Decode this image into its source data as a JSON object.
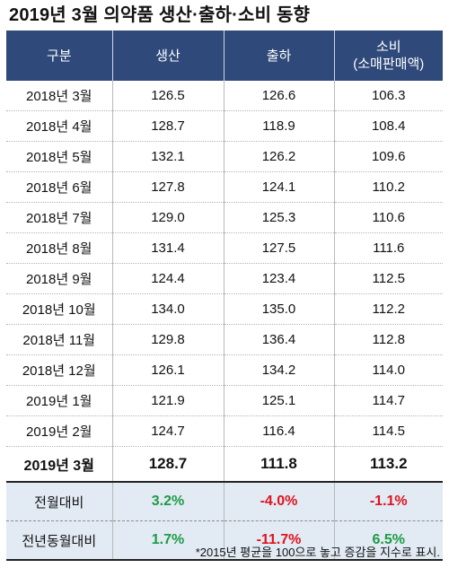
{
  "title": "2019년 3월 의약품 생산·출하·소비 동향",
  "table": {
    "headers": {
      "category": "구분",
      "production": "생산",
      "shipment": "출하",
      "consumption_line1": "소비",
      "consumption_line2": "(소매판매액)"
    },
    "rows": [
      {
        "period": "2018년 3월",
        "production": "126.5",
        "shipment": "126.6",
        "consumption": "106.3"
      },
      {
        "period": "2018년 4월",
        "production": "128.7",
        "shipment": "118.9",
        "consumption": "108.4"
      },
      {
        "period": "2018년 5월",
        "production": "132.1",
        "shipment": "126.2",
        "consumption": "109.6"
      },
      {
        "period": "2018년 6월",
        "production": "127.8",
        "shipment": "124.1",
        "consumption": "110.2"
      },
      {
        "period": "2018년 7월",
        "production": "129.0",
        "shipment": "125.3",
        "consumption": "110.6"
      },
      {
        "period": "2018년 8월",
        "production": "131.4",
        "shipment": "127.5",
        "consumption": "111.6"
      },
      {
        "period": "2018년 9월",
        "production": "124.4",
        "shipment": "123.4",
        "consumption": "112.5"
      },
      {
        "period": "2018년 10월",
        "production": "134.0",
        "shipment": "135.0",
        "consumption": "112.2"
      },
      {
        "period": "2018년 11월",
        "production": "129.8",
        "shipment": "136.4",
        "consumption": "112.8"
      },
      {
        "period": "2018년 12월",
        "production": "126.1",
        "shipment": "134.2",
        "consumption": "114.0"
      },
      {
        "period": "2019년 1월",
        "production": "121.9",
        "shipment": "125.1",
        "consumption": "114.7"
      },
      {
        "period": "2019년 2월",
        "production": "124.7",
        "shipment": "116.4",
        "consumption": "114.5"
      }
    ],
    "current": {
      "period": "2019년 3월",
      "production": "128.7",
      "shipment": "111.8",
      "consumption": "113.2"
    },
    "comparisons": [
      {
        "label": "전월대비",
        "production": "3.2%",
        "shipment": "-4.0%",
        "consumption": "-1.1%"
      },
      {
        "label": "전년동월대비",
        "production": "1.7%",
        "shipment": "-11.7%",
        "consumption": "6.5%"
      }
    ]
  },
  "colors": {
    "header_bg": "#2f4a7a",
    "compare_bg": "#e2eaf4",
    "increase": "#1e9b46",
    "decrease": "#e0141e"
  },
  "footnote": "*2015년 평균을 100으로 놓고 증감을 지수로 표시."
}
